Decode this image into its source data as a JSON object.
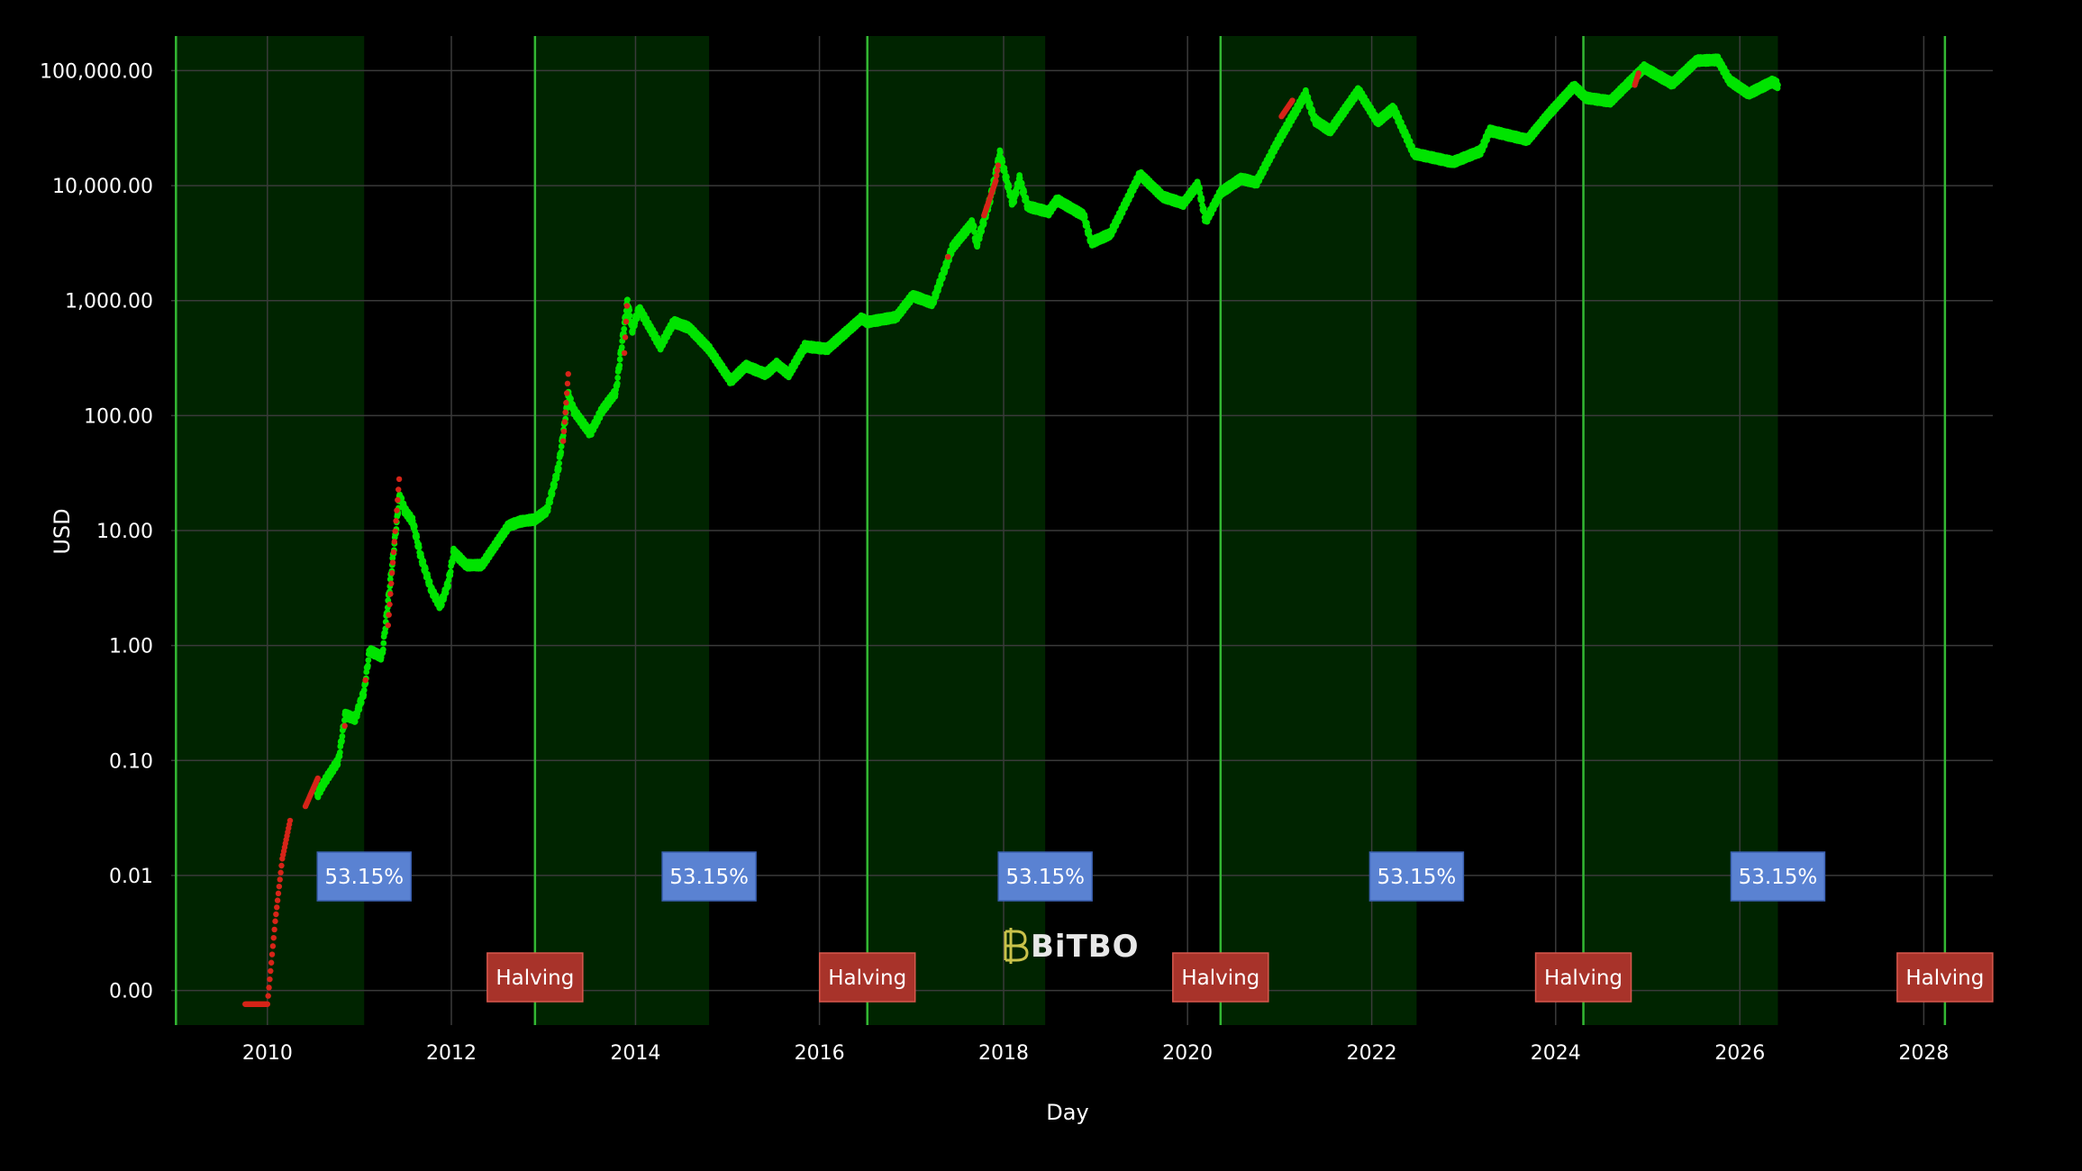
{
  "chart_data": {
    "type": "scatter",
    "title": "",
    "xlabel": "Day",
    "ylabel": "USD",
    "x_axis": {
      "type": "date",
      "range": [
        "2008-12-15",
        "2028-10-01"
      ],
      "ticks": [
        "2010",
        "2012",
        "2014",
        "2016",
        "2018",
        "2020",
        "2022",
        "2024",
        "2026",
        "2028"
      ]
    },
    "y_axis": {
      "type": "log",
      "range": [
        0.0005,
        200000
      ],
      "tick_values": [
        0.001,
        0.01,
        0.1,
        1,
        10,
        100,
        1000,
        10000,
        100000
      ],
      "tick_labels": [
        "0.00",
        "0.01",
        "0.10",
        "1.00",
        "10.00",
        "100.00",
        "1,000.00",
        "10,000.00",
        "100,000.00"
      ]
    },
    "grid": true,
    "colors": {
      "background": "#000000",
      "price_up": "#00e400",
      "price_hot": "#d62418",
      "band_fill": "#002400",
      "halving_line": "#33b833",
      "halving_box": "#a8332a",
      "percent_box": "#5a82d2",
      "grid": "#3a3a3a"
    },
    "shaded_bands": [
      {
        "start": "2009-01-03",
        "end": "2011-01-20",
        "label": "53.15%"
      },
      {
        "start": "2012-11-28",
        "end": "2014-10-20",
        "label": "53.15%"
      },
      {
        "start": "2016-07-09",
        "end": "2018-06-15",
        "label": "53.15%"
      },
      {
        "start": "2020-05-11",
        "end": "2022-06-28",
        "label": "53.15%"
      },
      {
        "start": "2024-04-20",
        "end": "2026-06-01",
        "label": "53.15%"
      }
    ],
    "vertical_lines": [
      "2009-01-03",
      "2012-11-28",
      "2016-07-09",
      "2020-05-11",
      "2024-04-20",
      "2028-03-25"
    ],
    "halving_labels": [
      {
        "date": "2012-11-28",
        "label": "Halving"
      },
      {
        "date": "2016-07-09",
        "label": "Halving"
      },
      {
        "date": "2020-05-11",
        "label": "Halving"
      },
      {
        "date": "2024-04-20",
        "label": "Halving"
      },
      {
        "date": "2028-03-25",
        "label": "Halving"
      }
    ],
    "watermark": "BiTBO",
    "series": [
      {
        "color": "#00e400",
        "points": [
          [
            "2010-07-18",
            0.05
          ],
          [
            "2010-08-15",
            0.065
          ],
          [
            "2010-10-10",
            0.1
          ],
          [
            "2010-11-06",
            0.25
          ],
          [
            "2010-12-15",
            0.23
          ],
          [
            "2011-01-20",
            0.4
          ],
          [
            "2011-02-10",
            0.9
          ],
          [
            "2011-04-01",
            0.8
          ],
          [
            "2011-06-10",
            20
          ],
          [
            "2011-06-30",
            15
          ],
          [
            "2011-08-01",
            12
          ],
          [
            "2011-09-01",
            6
          ],
          [
            "2011-10-15",
            3
          ],
          [
            "2011-11-18",
            2.2
          ],
          [
            "2011-12-20",
            3.5
          ],
          [
            "2012-01-10",
            6.5
          ],
          [
            "2012-03-01",
            5
          ],
          [
            "2012-05-01",
            5
          ],
          [
            "2012-08-15",
            11
          ],
          [
            "2012-10-01",
            12
          ],
          [
            "2012-11-28",
            12.5
          ],
          [
            "2013-01-15",
            15
          ],
          [
            "2013-03-01",
            35
          ],
          [
            "2013-04-10",
            150
          ],
          [
            "2013-05-01",
            110
          ],
          [
            "2013-07-05",
            70
          ],
          [
            "2013-08-20",
            110
          ],
          [
            "2013-10-15",
            160
          ],
          [
            "2013-11-30",
            1000
          ],
          [
            "2013-12-18",
            550
          ],
          [
            "2014-01-15",
            850
          ],
          [
            "2014-04-10",
            400
          ],
          [
            "2014-06-01",
            650
          ],
          [
            "2014-08-01",
            580
          ],
          [
            "2014-10-20",
            380
          ],
          [
            "2015-01-14",
            200
          ],
          [
            "2015-03-15",
            270
          ],
          [
            "2015-06-01",
            230
          ],
          [
            "2015-07-15",
            280
          ],
          [
            "2015-09-01",
            230
          ],
          [
            "2015-11-04",
            400
          ],
          [
            "2016-02-01",
            380
          ],
          [
            "2016-06-16",
            700
          ],
          [
            "2016-07-09",
            650
          ],
          [
            "2016-11-01",
            720
          ],
          [
            "2017-01-05",
            1100
          ],
          [
            "2017-03-25",
            950
          ],
          [
            "2017-06-12",
            2900
          ],
          [
            "2017-09-01",
            4800
          ],
          [
            "2017-09-15",
            3000
          ],
          [
            "2017-11-08",
            7500
          ],
          [
            "2017-12-17",
            19000
          ],
          [
            "2018-02-06",
            6900
          ],
          [
            "2018-03-05",
            11500
          ],
          [
            "2018-04-06",
            6600
          ],
          [
            "2018-06-29",
            5900
          ],
          [
            "2018-08-01",
            7500
          ],
          [
            "2018-11-15",
            5500
          ],
          [
            "2018-12-15",
            3200
          ],
          [
            "2019-03-01",
            3800
          ],
          [
            "2019-06-26",
            12500
          ],
          [
            "2019-09-25",
            8000
          ],
          [
            "2019-12-15",
            7000
          ],
          [
            "2020-02-12",
            10300
          ],
          [
            "2020-03-13",
            4900
          ],
          [
            "2020-05-11",
            8700
          ],
          [
            "2020-08-01",
            11500
          ],
          [
            "2020-10-01",
            10600
          ],
          [
            "2020-12-20",
            23000
          ],
          [
            "2021-04-14",
            63000
          ],
          [
            "2021-05-20",
            37000
          ],
          [
            "2021-07-20",
            30000
          ],
          [
            "2021-11-09",
            67000
          ],
          [
            "2022-01-24",
            36000
          ],
          [
            "2022-03-28",
            47000
          ],
          [
            "2022-06-18",
            19000
          ],
          [
            "2022-11-20",
            16000
          ],
          [
            "2023-03-10",
            20000
          ],
          [
            "2023-04-14",
            30000
          ],
          [
            "2023-09-11",
            25000
          ],
          [
            "2023-12-05",
            42000
          ],
          [
            "2024-03-14",
            73000
          ],
          [
            "2024-05-01",
            58000
          ],
          [
            "2024-08-05",
            54000
          ],
          [
            "2024-12-17",
            106000
          ],
          [
            "2025-04-08",
            77000
          ],
          [
            "2025-07-14",
            122000
          ],
          [
            "2025-10-06",
            124000
          ],
          [
            "2025-11-21",
            82000
          ],
          [
            "2026-02-05",
            63000
          ],
          [
            "2026-05-10",
            80000
          ],
          [
            "2026-06-01",
            75000
          ]
        ]
      },
      {
        "color": "#d62418",
        "points": [
          [
            "2009-10-05",
            0.00076
          ],
          [
            "2009-11-15",
            0.00076
          ],
          [
            "2010-01-01",
            0.00076
          ],
          [
            "2010-02-01",
            0.004
          ],
          [
            "2010-03-01",
            0.014
          ],
          [
            "2010-04-01",
            0.03
          ],
          [
            "2010-06-01",
            0.04
          ],
          [
            "2010-07-20",
            0.07
          ],
          [
            "2010-11-04",
            0.2
          ],
          [
            "2011-01-25",
            0.5
          ],
          [
            "2011-04-25",
            1.5
          ],
          [
            "2011-05-20",
            8
          ],
          [
            "2011-06-08",
            28
          ],
          [
            "2013-03-20",
            60
          ],
          [
            "2013-04-09",
            230
          ],
          [
            "2013-11-18",
            350
          ],
          [
            "2013-11-28",
            900
          ],
          [
            "2017-05-25",
            2400
          ],
          [
            "2017-10-15",
            5500
          ],
          [
            "2017-12-01",
            11000
          ],
          [
            "2017-12-10",
            15000
          ],
          [
            "2021-01-08",
            40000
          ],
          [
            "2021-02-20",
            55000
          ],
          [
            "2024-11-10",
            75000
          ],
          [
            "2024-11-25",
            95000
          ]
        ]
      }
    ]
  }
}
